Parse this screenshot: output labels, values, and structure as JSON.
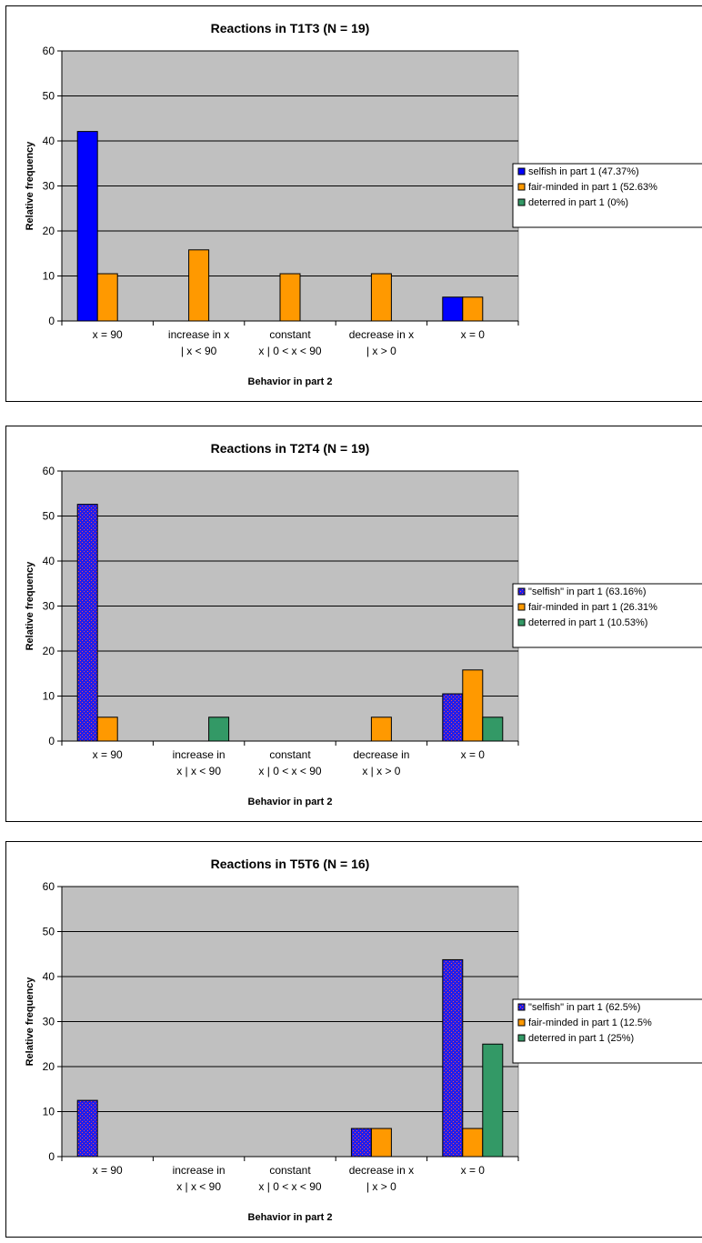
{
  "chart_data": [
    {
      "type": "bar",
      "title": "Reactions in T1T3 (N = 19)",
      "xlabel": "Behavior in part 2",
      "ylabel": "Relative frequency",
      "ylim": [
        0,
        60
      ],
      "yticks": [
        "0",
        "10",
        "20",
        "30",
        "40",
        "50",
        "60"
      ],
      "grid": true,
      "legend_position": "right",
      "categories": [
        [
          "x = 90"
        ],
        [
          "increase in x",
          "| x < 90"
        ],
        [
          "constant",
          "x | 0 < x < 90"
        ],
        [
          "decrease in x",
          "| x > 0"
        ],
        [
          "x = 0"
        ]
      ],
      "series": [
        {
          "name": "selfish in part 1 (47.37%)",
          "color": "#0000ff",
          "pattern": "solid",
          "values": [
            42.1,
            0,
            0,
            0,
            5.3
          ]
        },
        {
          "name": "fair-minded in part 1 (52.63%",
          "color": "#ff9900",
          "pattern": "solid",
          "values": [
            10.5,
            15.8,
            10.5,
            10.5,
            5.3
          ]
        },
        {
          "name": "deterred in part 1 (0%)",
          "color": "#339966",
          "pattern": "solid",
          "values": [
            0,
            0,
            0,
            0,
            0
          ]
        }
      ]
    },
    {
      "type": "bar",
      "title": "Reactions in T2T4 (N = 19)",
      "xlabel": "Behavior in part 2",
      "ylabel": "Relative frequency",
      "ylim": [
        0,
        60
      ],
      "yticks": [
        "0",
        "10",
        "20",
        "30",
        "40",
        "50",
        "60"
      ],
      "grid": true,
      "legend_position": "right",
      "categories": [
        [
          "x = 90"
        ],
        [
          "increase in",
          "x | x < 90"
        ],
        [
          "constant",
          "x | 0 < x < 90"
        ],
        [
          "decrease in",
          "x | x > 0"
        ],
        [
          "x = 0"
        ]
      ],
      "series": [
        {
          "name": "\"selfish\" in part 1 (63.16%)",
          "color": "#0000ff",
          "pattern": "hatched",
          "values": [
            52.6,
            0,
            0,
            0,
            10.5
          ]
        },
        {
          "name": "fair-minded in part 1 (26.31%",
          "color": "#ff9900",
          "pattern": "solid",
          "values": [
            5.3,
            0,
            0,
            5.3,
            15.8
          ]
        },
        {
          "name": "deterred in part 1 (10.53%)",
          "color": "#339966",
          "pattern": "solid",
          "values": [
            0,
            5.3,
            0,
            0,
            5.3
          ]
        }
      ]
    },
    {
      "type": "bar",
      "title": "Reactions in T5T6 (N = 16)",
      "xlabel": "Behavior in part 2",
      "ylabel": "Relative frequency",
      "ylim": [
        0,
        60
      ],
      "yticks": [
        "0",
        "10",
        "20",
        "30",
        "40",
        "50",
        "60"
      ],
      "grid": true,
      "legend_position": "right",
      "categories": [
        [
          "x = 90"
        ],
        [
          "increase in",
          "x | x < 90"
        ],
        [
          "constant",
          "x | 0 < x < 90"
        ],
        [
          "decrease in x",
          "| x > 0"
        ],
        [
          "x = 0"
        ]
      ],
      "series": [
        {
          "name": "\"selfish\" in part 1 (62.5%)",
          "color": "#0000ff",
          "pattern": "hatched",
          "values": [
            12.5,
            0,
            0,
            6.25,
            43.75
          ]
        },
        {
          "name": "fair-minded in part 1 (12.5%",
          "color": "#ff9900",
          "pattern": "solid",
          "values": [
            0,
            0,
            0,
            6.25,
            6.25
          ]
        },
        {
          "name": "deterred in part 1 (25%)",
          "color": "#339966",
          "pattern": "solid",
          "values": [
            0,
            0,
            0,
            0,
            25
          ]
        }
      ]
    }
  ]
}
